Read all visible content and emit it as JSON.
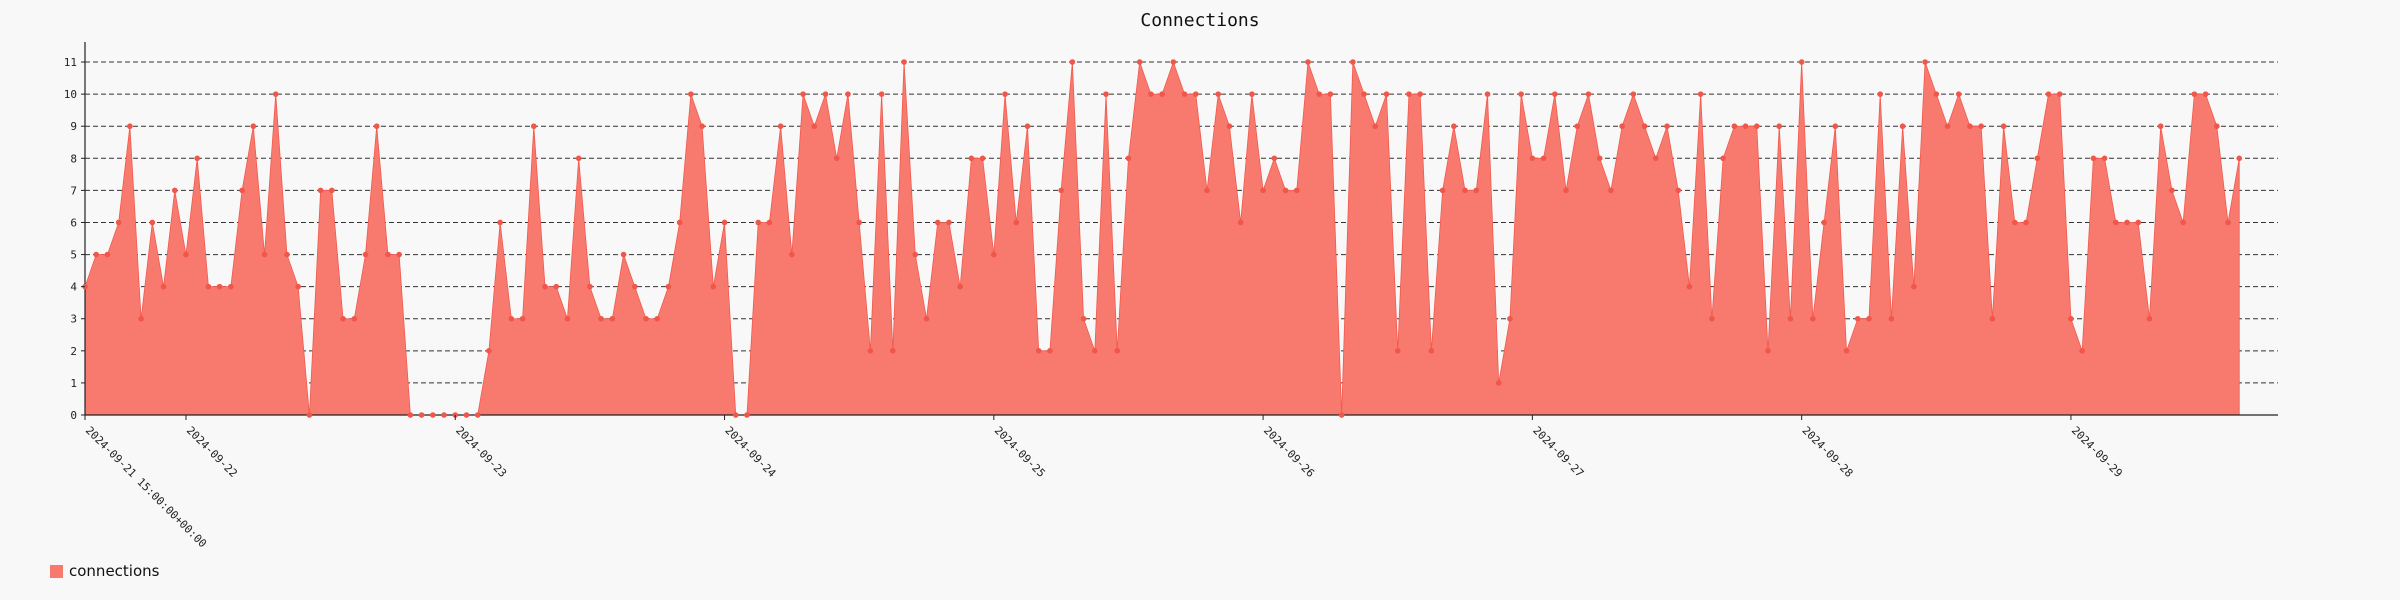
{
  "chart_data": {
    "type": "area",
    "title": "Connections",
    "xlabel": "",
    "ylabel": "",
    "x_tick_labels": [
      "2024-09-21 15:00:00+00:00",
      "2024-09-22",
      "2024-09-23",
      "2024-09-24",
      "2024-09-25",
      "2024-09-26",
      "2024-09-27",
      "2024-09-28",
      "2024-09-29"
    ],
    "y_ticks": [
      0,
      1,
      2,
      3,
      4,
      5,
      6,
      7,
      8,
      9,
      10,
      11
    ],
    "ylim": [
      0,
      11.5
    ],
    "x_start": "2024-09-21 15:00",
    "x_interval": "1 hour",
    "grid": "horizontal dashed",
    "legend_position": "bottom-left",
    "series": [
      {
        "name": "connections",
        "color": "#f87a6e",
        "values": [
          4,
          5,
          5,
          6,
          9,
          3,
          6,
          4,
          7,
          5,
          8,
          4,
          4,
          4,
          7,
          9,
          5,
          10,
          5,
          4,
          0,
          7,
          7,
          3,
          3,
          5,
          9,
          5,
          5,
          0,
          0,
          0,
          0,
          0,
          0,
          0,
          2,
          6,
          3,
          3,
          9,
          4,
          4,
          3,
          8,
          4,
          3,
          3,
          5,
          4,
          3,
          3,
          4,
          6,
          10,
          9,
          4,
          6,
          0,
          0,
          6,
          6,
          9,
          5,
          10,
          9,
          10,
          8,
          10,
          6,
          2,
          10,
          2,
          11,
          5,
          3,
          6,
          6,
          4,
          8,
          8,
          5,
          10,
          6,
          9,
          2,
          2,
          7,
          11,
          3,
          2,
          10,
          2,
          8,
          11,
          10,
          10,
          11,
          10,
          10,
          7,
          10,
          9,
          6,
          10,
          7,
          8,
          7,
          7,
          11,
          10,
          10,
          0,
          11,
          10,
          9,
          10,
          2,
          10,
          10,
          2,
          7,
          9,
          7,
          7,
          10,
          1,
          3,
          10,
          8,
          8,
          10,
          7,
          9,
          10,
          8,
          7,
          9,
          10,
          9,
          8,
          9,
          7,
          4,
          10,
          3,
          8,
          9,
          9,
          9,
          2,
          9,
          3,
          11,
          3,
          6,
          9,
          2,
          3,
          3,
          10,
          3,
          9,
          4,
          11,
          10,
          9,
          10,
          9,
          9,
          3,
          9,
          6,
          6,
          8,
          10,
          10,
          3,
          2,
          8,
          8,
          6,
          6,
          6,
          3,
          9,
          7,
          6,
          10,
          10,
          9,
          6,
          8
        ]
      }
    ]
  }
}
